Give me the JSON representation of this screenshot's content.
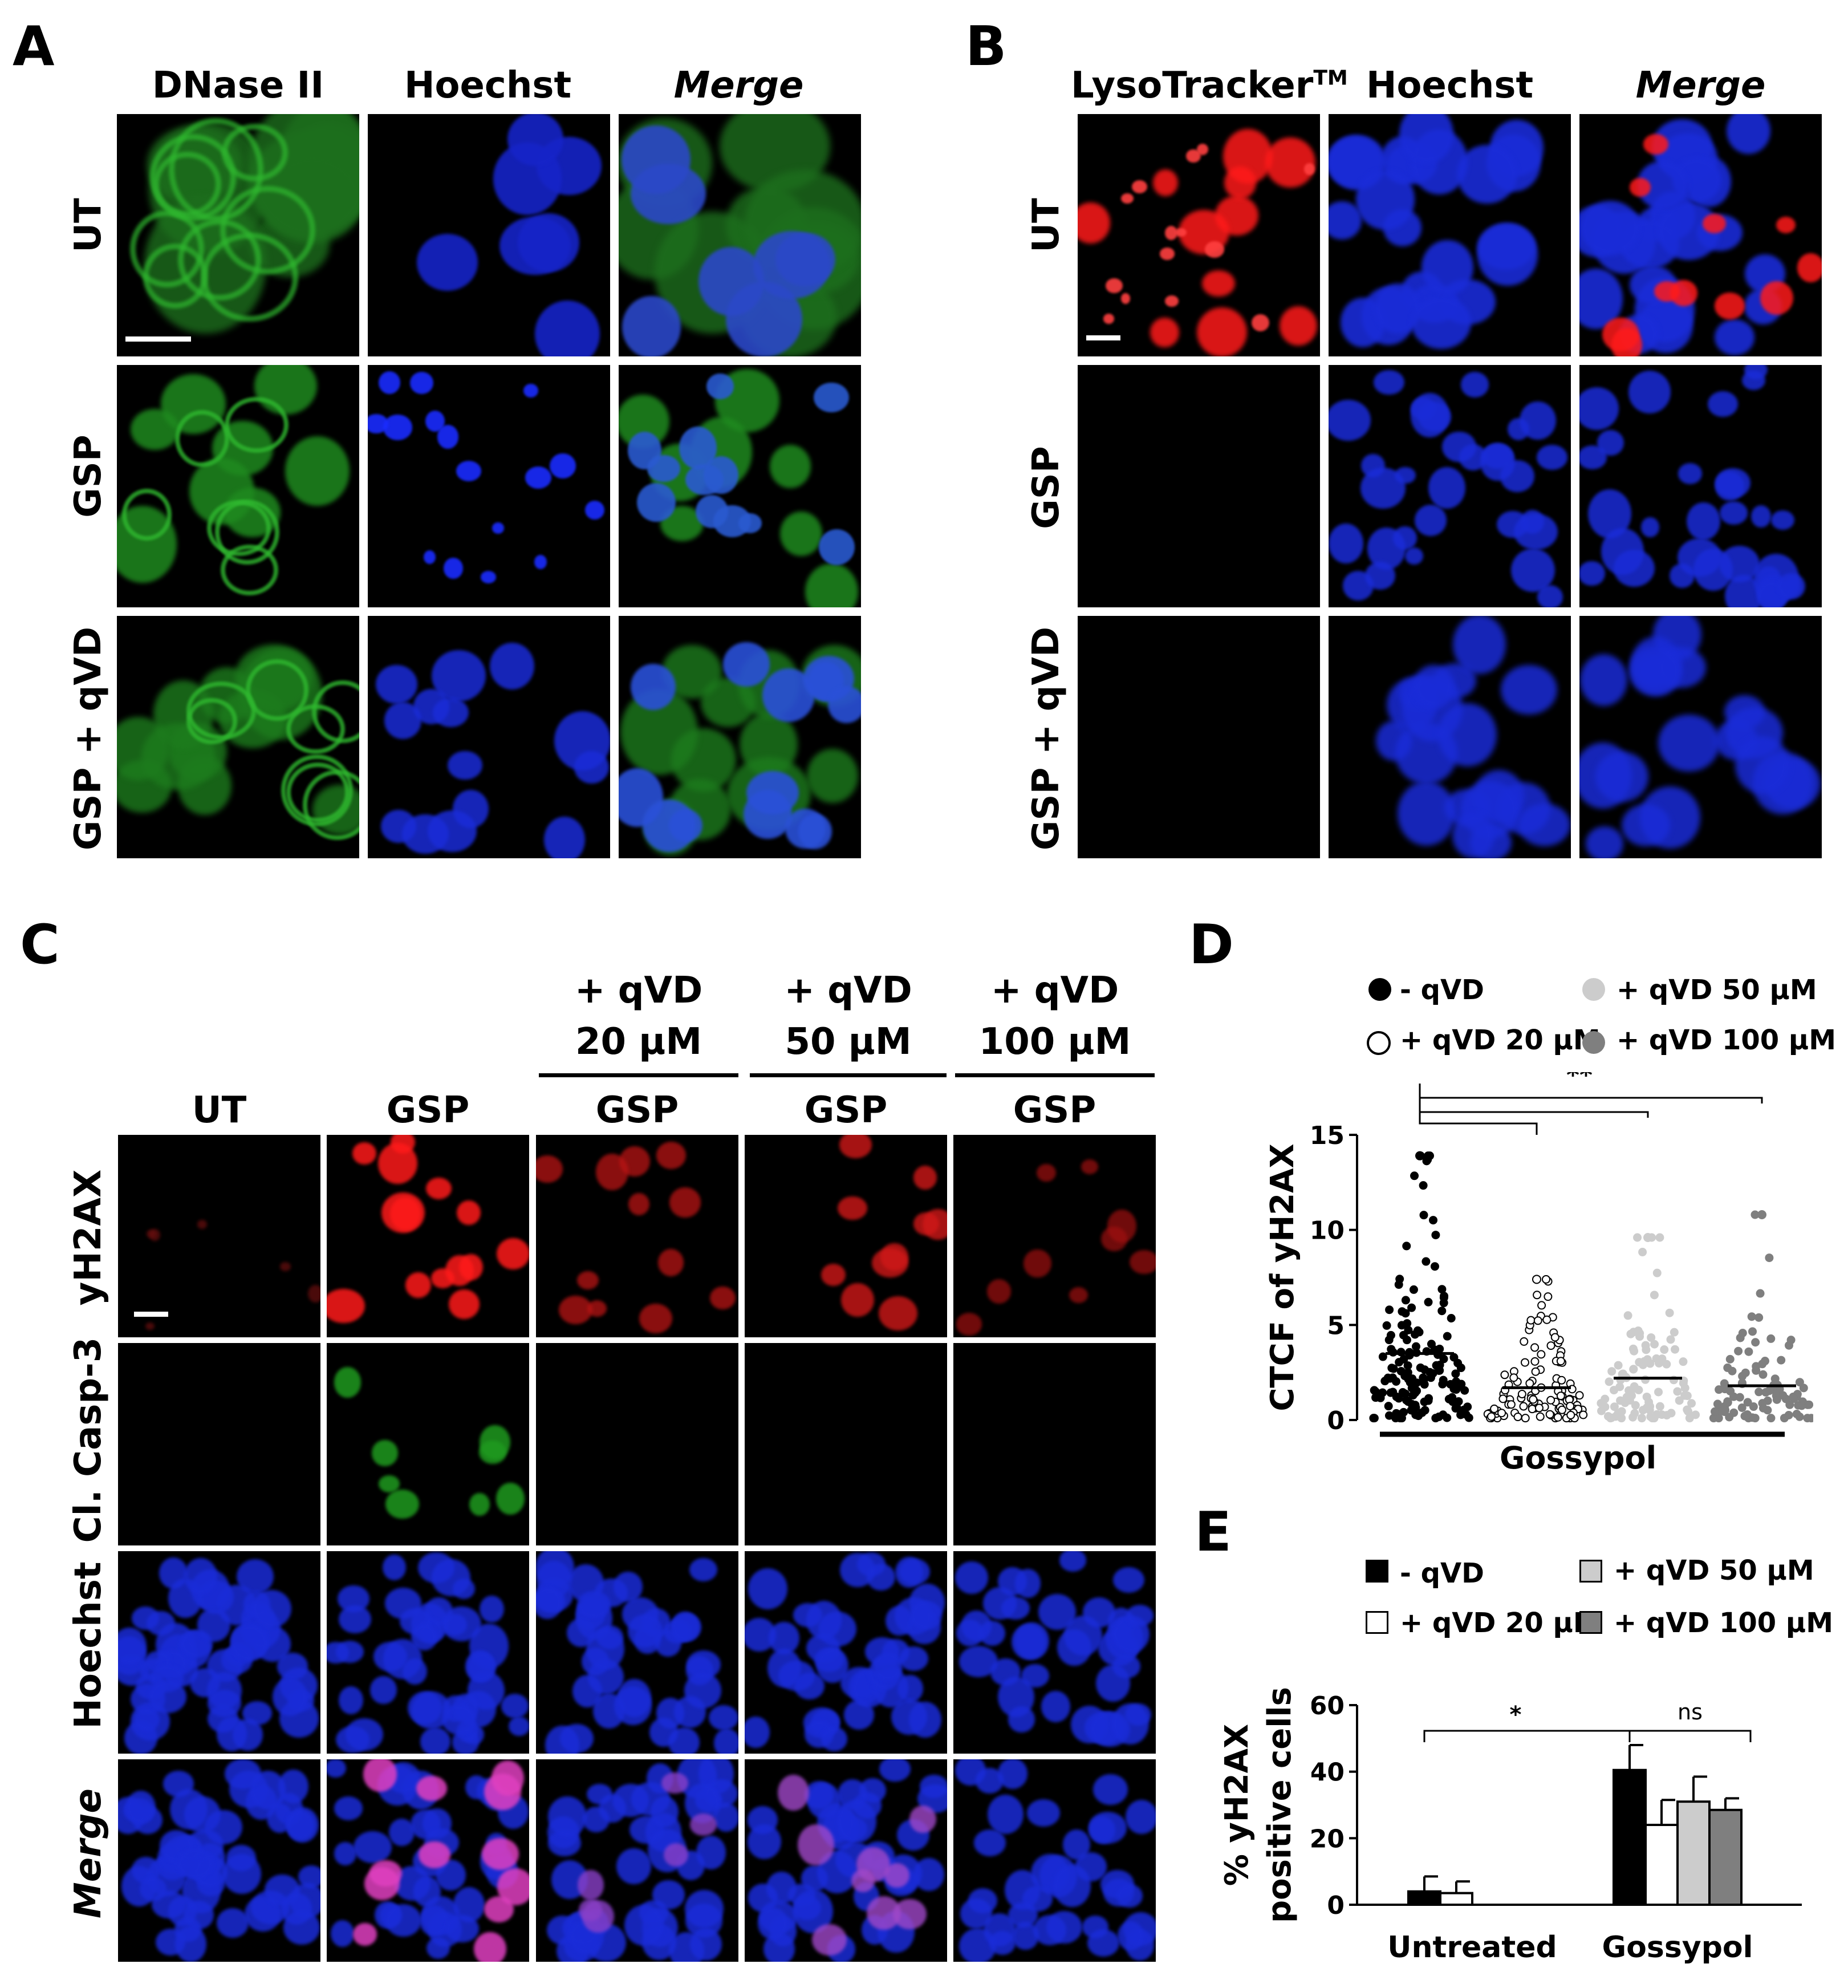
{
  "panels": {
    "A": {
      "label": "A",
      "columns": [
        "DNase II",
        "Hoechst",
        "Merge"
      ],
      "rows": [
        "UT",
        "GSP",
        "GSP + qVD"
      ]
    },
    "B": {
      "label": "B",
      "columns": [
        "LysoTracker",
        "TM",
        "Hoechst",
        "Merge"
      ],
      "rows": [
        "UT",
        "GSP",
        "GSP + qVD"
      ]
    },
    "C": {
      "label": "C",
      "group_headers": [
        {
          "line1": "+ qVD",
          "line2": "20 µM"
        },
        {
          "line1": "+ qVD",
          "line2": "50 µM"
        },
        {
          "line1": "+ qVD",
          "line2": "100 µM"
        }
      ],
      "columns": [
        "UT",
        "GSP",
        "GSP",
        "GSP",
        "GSP"
      ],
      "rows": [
        "yH2AX",
        "Cl. Casp-3",
        "Hoechst",
        "Merge"
      ]
    },
    "D": {
      "label": "D",
      "legend": [
        "- qVD",
        "+ qVD 50 µM",
        "+ qVD 20 µM",
        "+ qVD 100 µM"
      ],
      "significance": "**",
      "ylabel": "CTCF of yH2AX",
      "xlabel": "Gossypol"
    },
    "E": {
      "label": "E",
      "legend": [
        "- qVD",
        "+ qVD 50 µM",
        "+ qVD 20 µM",
        "+ qVD 100 µM"
      ],
      "significance": [
        "*",
        "ns"
      ],
      "ylabel_line1": "% yH2AX",
      "ylabel_line2": "positive cells"
    }
  },
  "colors": {
    "no_qvd": "#000000",
    "qvd20": "#ffffff",
    "qvd50": "#cccccc",
    "qvd100": "#7f7f7f",
    "green_stain": "#2fb82f",
    "blue_stain": "#1a2cff",
    "red_stain": "#ff1a1a"
  },
  "chart_data": [
    {
      "panel": "D",
      "type": "scatter",
      "ylabel": "CTCF of yH2AX",
      "xlabel": "Gossypol",
      "ylim": [
        0,
        15
      ],
      "yticks": [
        0,
        5,
        10,
        15
      ],
      "series": [
        {
          "name": "- qVD",
          "mean": 3.5,
          "max": 13.9,
          "n": 150
        },
        {
          "name": "+ qVD 20 µM",
          "mean": 1.7,
          "max": 7.4,
          "n": 110
        },
        {
          "name": "+ qVD 50 µM",
          "mean": 2.2,
          "max": 9.6,
          "n": 100
        },
        {
          "name": "+ qVD 100 µM",
          "mean": 1.8,
          "max": 10.8,
          "n": 90
        }
      ]
    },
    {
      "panel": "E",
      "type": "bar",
      "categories": [
        "Untreated",
        "Gossypol"
      ],
      "ylim": [
        0,
        60
      ],
      "yticks": [
        0,
        20,
        40,
        60
      ],
      "series": [
        {
          "name": "- qVD",
          "values": [
            4,
            40.5
          ],
          "errors": [
            4.5,
            7.5
          ]
        },
        {
          "name": "+ qVD 20 µM",
          "values": [
            3.5,
            24
          ],
          "errors": [
            3.5,
            7.5
          ]
        },
        {
          "name": "+ qVD 50 µM",
          "values": [
            0,
            31
          ],
          "errors": [
            0,
            7.5
          ]
        },
        {
          "name": "+ qVD 100 µM",
          "values": [
            0,
            28.5
          ],
          "errors": [
            0,
            3.5
          ]
        }
      ]
    }
  ]
}
